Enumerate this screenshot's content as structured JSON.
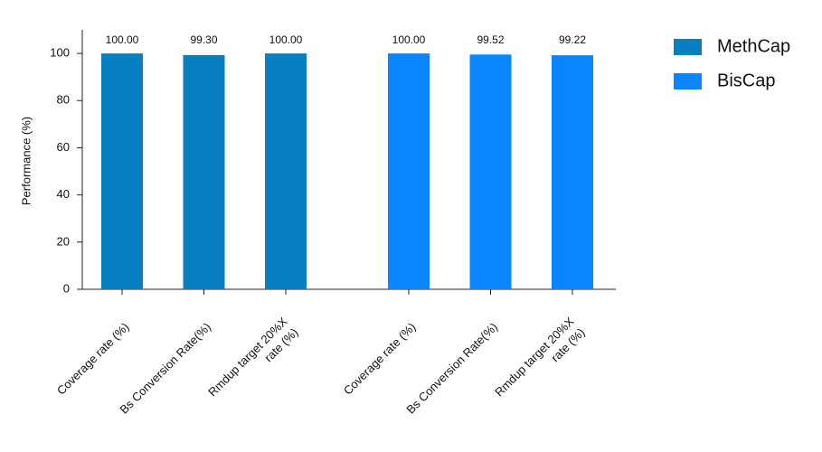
{
  "chart_data": {
    "type": "bar",
    "y_label": "Performance (%)",
    "categories": [
      "Coverage rate (%)",
      "Bs Conversion Rate(%)",
      "Rmdup target 20%X\nrate (%)",
      "Coverage rate (%)",
      "Bs Conversion Rate(%)",
      "Rmdup target 20%X\nrate (%)"
    ],
    "series": [
      {
        "name": "MethCap",
        "color": "#087fc0",
        "values": [
          100,
          99.3,
          100,
          null,
          null,
          null
        ],
        "value_labels": [
          "100.00",
          "99.30",
          "100.00",
          null,
          null,
          null
        ]
      },
      {
        "name": "BisCap",
        "color": "#0a84ff",
        "values": [
          null,
          null,
          null,
          100,
          99.52,
          99.22
        ],
        "value_labels": [
          null,
          null,
          null,
          "100.00",
          "99.52",
          "99.22"
        ]
      }
    ],
    "ylim": [
      0,
      110
    ],
    "yticks": [
      0,
      20,
      40,
      60,
      80,
      100
    ],
    "grid": false,
    "legend": "top-right"
  }
}
